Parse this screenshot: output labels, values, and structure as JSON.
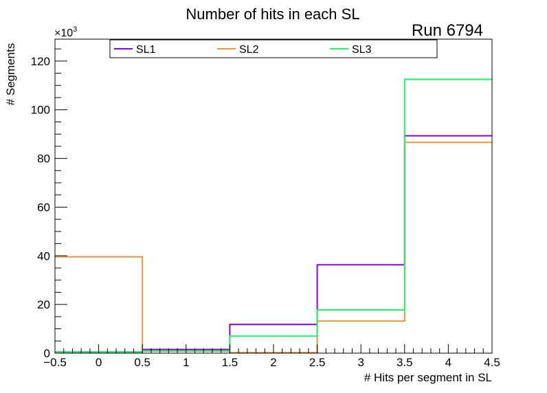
{
  "chart_data": {
    "type": "step",
    "title": "Number of hits in each SL",
    "run_label": "Run 6794",
    "xlabel": "# Hits per segment in SL",
    "ylabel": "# Segments",
    "y_multiplier_base": "×10",
    "y_multiplier_exp": "3",
    "xlim": [
      -0.5,
      4.5
    ],
    "ylim": [
      0,
      129
    ],
    "x_ticks": [
      -0.5,
      0,
      0.5,
      1,
      1.5,
      2,
      2.5,
      3,
      3.5,
      4,
      4.5
    ],
    "x_tick_labels": [
      "−0.5",
      "0",
      "0.5",
      "1",
      "1.5",
      "2",
      "2.5",
      "3",
      "3.5",
      "4",
      "4.5"
    ],
    "y_ticks": [
      0,
      20,
      40,
      60,
      80,
      100,
      120
    ],
    "y_tick_labels": [
      "0",
      "20",
      "40",
      "60",
      "80",
      "100",
      "120"
    ],
    "bin_edges": [
      -0.5,
      0.5,
      1.5,
      2.5,
      3.5,
      4.5
    ],
    "series": [
      {
        "name": "SL1",
        "color": "#8a00e6",
        "values": [
          0.5,
          1.5,
          11.8,
          36.3,
          89.3
        ]
      },
      {
        "name": "SL2",
        "color": "#f59331",
        "values": [
          39.6,
          0.8,
          0.2,
          13.2,
          86.6
        ]
      },
      {
        "name": "SL3",
        "color": "#19f564",
        "values": [
          0.5,
          1.0,
          7.0,
          17.8,
          112.5
        ]
      }
    ],
    "legend_position": "top"
  }
}
